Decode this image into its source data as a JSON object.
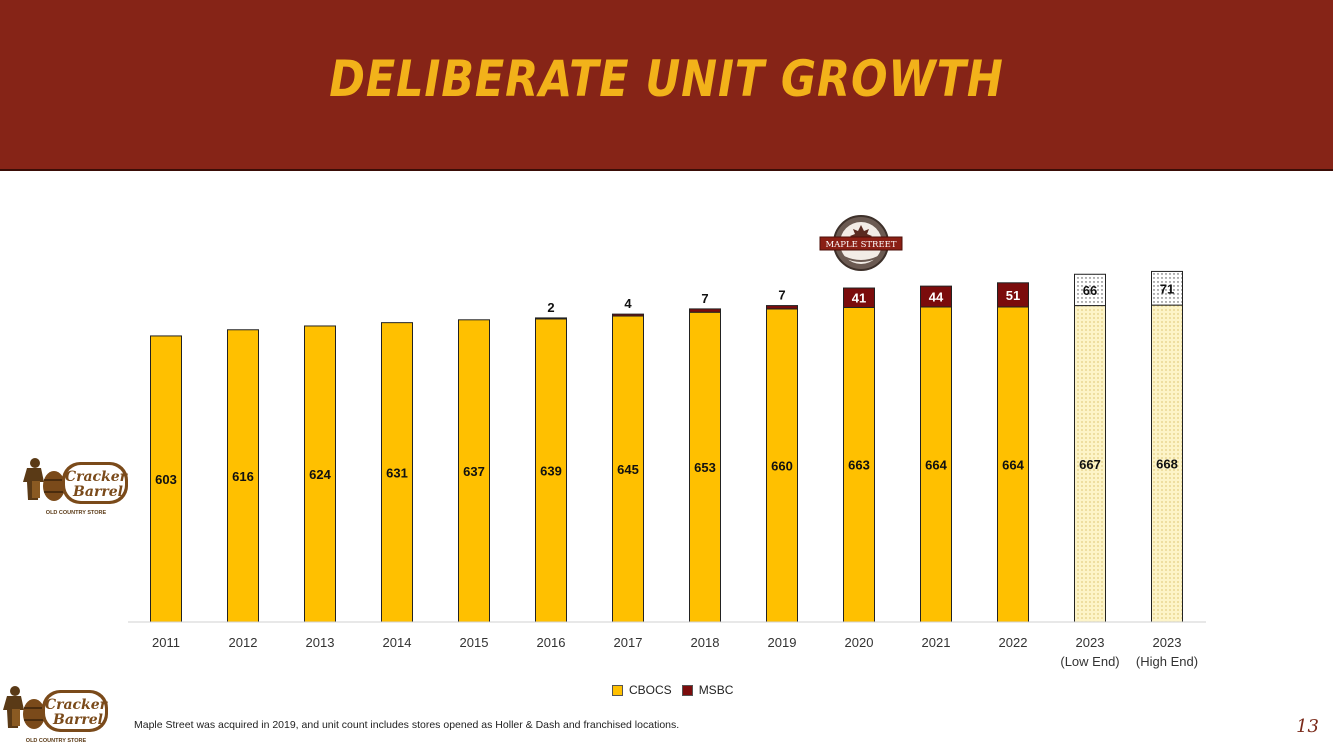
{
  "header": {
    "title": "DELIBERATE UNIT GROWTH"
  },
  "logos": {
    "cracker_barrel": {
      "name_line1": "Cracker",
      "name_line2": "Barrel",
      "tagline": "OLD COUNTRY STORE"
    },
    "maple_street": {
      "text": "MAPLE STREET"
    }
  },
  "chart_data": {
    "type": "bar",
    "stacked": true,
    "categories": [
      "2011",
      "2012",
      "2013",
      "2014",
      "2015",
      "2016",
      "2017",
      "2018",
      "2019",
      "2020",
      "2021",
      "2022",
      "2023 (Low End)",
      "2023 (High End)"
    ],
    "series": [
      {
        "name": "CBOCS",
        "color": "#ffc000",
        "values": [
          603,
          616,
          624,
          631,
          637,
          639,
          645,
          653,
          660,
          663,
          664,
          664,
          667,
          668
        ]
      },
      {
        "name": "MSBC",
        "color": "#7b0c0c",
        "values": [
          0,
          0,
          0,
          0,
          0,
          2,
          4,
          7,
          7,
          41,
          44,
          51,
          66,
          71
        ]
      }
    ],
    "projected_categories": [
      "2023 (Low End)",
      "2023 (High End)"
    ],
    "ylim": [
      0,
      750
    ],
    "grid": false,
    "legend_position": "bottom"
  },
  "footnote": "Maple Street was acquired in 2019, and unit count includes stores opened as Holler & Dash and franchised locations.",
  "page_number": "13"
}
